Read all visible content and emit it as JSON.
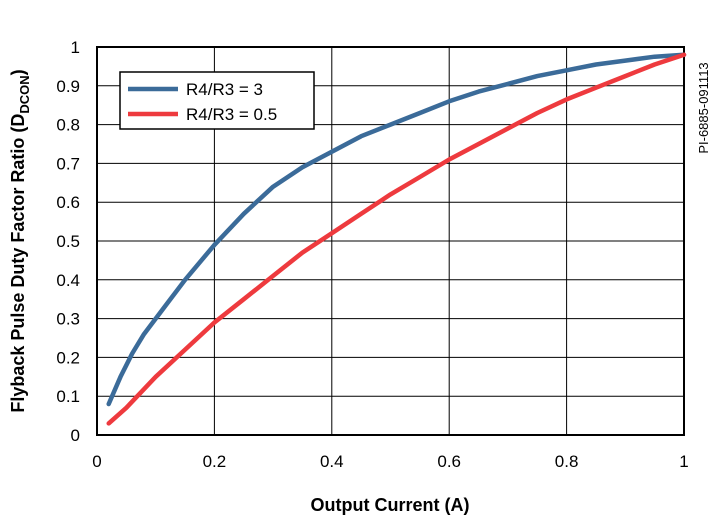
{
  "chart_data": {
    "type": "line",
    "xlabel": "Output Current (A)",
    "ylabel_main": "Flyback Pulse Duty Factor Ratio (D",
    "ylabel_sub": "DCON",
    "ylabel_close": ")",
    "xlim": [
      0,
      1
    ],
    "ylim": [
      0,
      1
    ],
    "grid": true,
    "legend_position": "top-left",
    "x_ticks": [
      "0",
      "0.2",
      "0.4",
      "0.6",
      "0.8",
      "1"
    ],
    "y_ticks": [
      "0",
      "0.1",
      "0.2",
      "0.3",
      "0.4",
      "0.5",
      "0.6",
      "0.7",
      "0.8",
      "0.9",
      "1"
    ],
    "side_label": "PI-6885-091113",
    "series": [
      {
        "name": "R4/R3 = 3",
        "color": "#3b6b99",
        "x": [
          0.02,
          0.04,
          0.06,
          0.08,
          0.1,
          0.12,
          0.15,
          0.2,
          0.25,
          0.3,
          0.35,
          0.4,
          0.45,
          0.5,
          0.55,
          0.6,
          0.65,
          0.7,
          0.75,
          0.8,
          0.85,
          0.9,
          0.95,
          1.0
        ],
        "y": [
          0.08,
          0.15,
          0.21,
          0.26,
          0.3,
          0.34,
          0.4,
          0.49,
          0.57,
          0.64,
          0.69,
          0.73,
          0.77,
          0.8,
          0.83,
          0.86,
          0.885,
          0.905,
          0.925,
          0.94,
          0.955,
          0.965,
          0.975,
          0.98
        ]
      },
      {
        "name": "R4/R3 = 0.5",
        "color": "#ee3a3e",
        "x": [
          0.02,
          0.05,
          0.1,
          0.15,
          0.2,
          0.25,
          0.3,
          0.35,
          0.4,
          0.45,
          0.5,
          0.55,
          0.6,
          0.65,
          0.7,
          0.75,
          0.8,
          0.85,
          0.9,
          0.95,
          1.0
        ],
        "y": [
          0.03,
          0.07,
          0.15,
          0.22,
          0.29,
          0.35,
          0.41,
          0.47,
          0.52,
          0.57,
          0.62,
          0.665,
          0.71,
          0.75,
          0.79,
          0.83,
          0.865,
          0.895,
          0.925,
          0.955,
          0.98
        ]
      }
    ]
  }
}
